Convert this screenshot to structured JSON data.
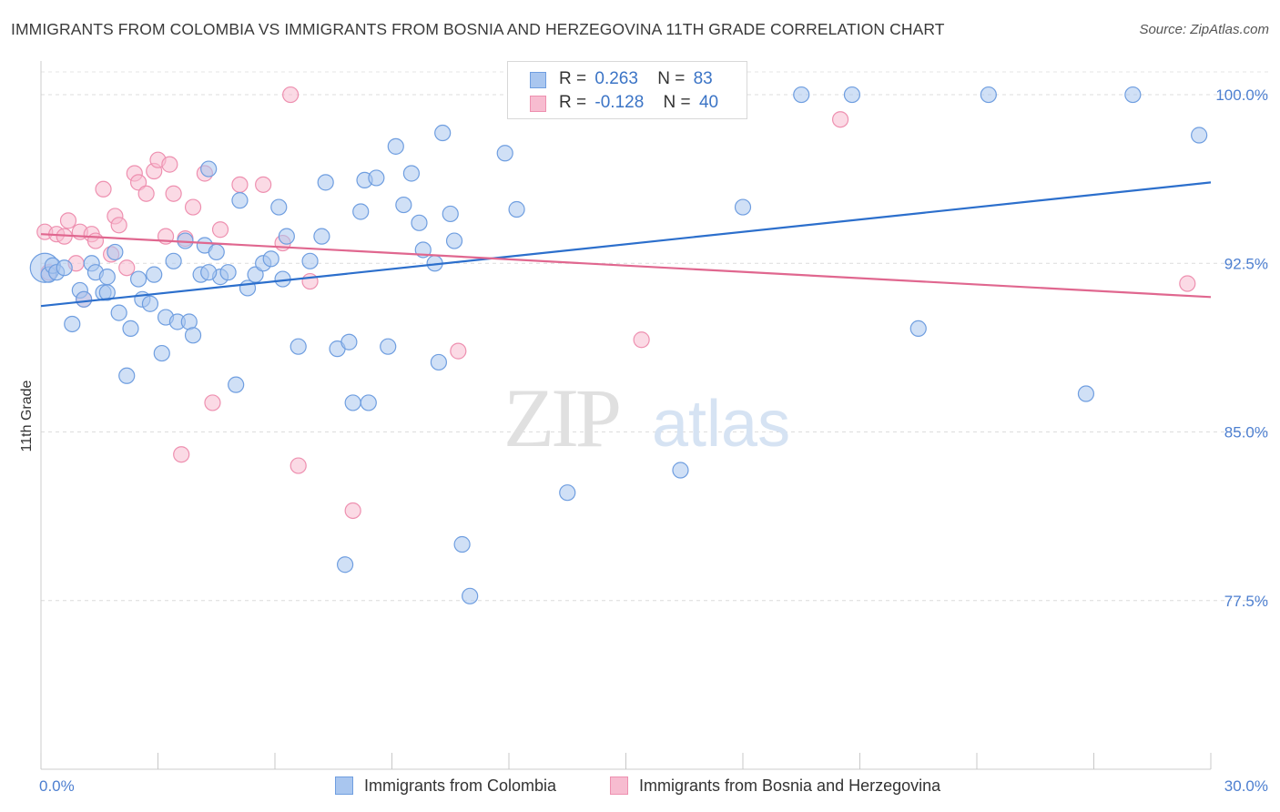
{
  "title": "IMMIGRANTS FROM COLOMBIA VS IMMIGRANTS FROM BOSNIA AND HERZEGOVINA 11TH GRADE CORRELATION CHART",
  "source": "Source: ZipAtlas.com",
  "watermark": {
    "zip": "ZIP",
    "atlas": "atlas"
  },
  "stats": [
    {
      "r_label": "R =",
      "r_value": "0.263",
      "n_label": "N =",
      "n_value": "83"
    },
    {
      "r_label": "R =",
      "r_value": "-0.128",
      "n_label": "N =",
      "n_value": "40"
    }
  ],
  "legend": [
    {
      "label": "Immigrants from Colombia"
    },
    {
      "label": "Immigrants from Bosnia and Herzegovina"
    }
  ],
  "colors": {
    "blue_fill": "#a9c6ef",
    "blue_stroke": "#6f9ee0",
    "blue_line": "#2c6fcc",
    "pink_fill": "#f7bcd0",
    "pink_stroke": "#ee90b0",
    "pink_line": "#e0678f",
    "tick_label": "#4d7fd0"
  },
  "chart_data": {
    "type": "scatter",
    "title": "IMMIGRANTS FROM COLOMBIA VS IMMIGRANTS FROM BOSNIA AND HERZEGOVINA 11TH GRADE CORRELATION CHART",
    "xlabel": "",
    "ylabel": "11th Grade",
    "xlim": [
      0,
      30
    ],
    "ylim": [
      70.0,
      101.5
    ],
    "x_tick_labels": [
      "0.0%",
      "30.0%"
    ],
    "y_ticks": [
      77.5,
      85.0,
      92.5,
      100.0
    ],
    "y_tick_labels": [
      "77.5%",
      "85.0%",
      "92.5%",
      "100.0%"
    ],
    "grid": true,
    "legend_position": "bottom",
    "series": [
      {
        "name": "Immigrants from Colombia",
        "color": "#a9c6ef",
        "trend": {
          "x": [
            0,
            30
          ],
          "y": [
            90.6,
            96.1
          ]
        },
        "points": [
          [
            0.1,
            92.3
          ],
          [
            0.2,
            92.0
          ],
          [
            0.3,
            92.4
          ],
          [
            0.4,
            92.1
          ],
          [
            0.6,
            92.3
          ],
          [
            0.8,
            89.8
          ],
          [
            1.0,
            91.3
          ],
          [
            1.1,
            90.9
          ],
          [
            1.3,
            92.5
          ],
          [
            1.4,
            92.1
          ],
          [
            1.6,
            91.2
          ],
          [
            1.7,
            91.9
          ],
          [
            1.9,
            93.0
          ],
          [
            2.0,
            90.3
          ],
          [
            2.2,
            87.5
          ],
          [
            2.3,
            89.6
          ],
          [
            2.5,
            91.8
          ],
          [
            2.6,
            90.9
          ],
          [
            2.8,
            90.7
          ],
          [
            2.9,
            92.0
          ],
          [
            3.1,
            88.5
          ],
          [
            3.2,
            90.1
          ],
          [
            3.4,
            92.6
          ],
          [
            3.5,
            89.9
          ],
          [
            3.7,
            93.5
          ],
          [
            3.8,
            89.9
          ],
          [
            3.9,
            89.3
          ],
          [
            4.1,
            92.0
          ],
          [
            4.2,
            93.3
          ],
          [
            4.3,
            96.7
          ],
          [
            4.5,
            93.0
          ],
          [
            4.6,
            91.9
          ],
          [
            4.8,
            92.1
          ],
          [
            5.0,
            87.1
          ],
          [
            5.1,
            95.3
          ],
          [
            5.3,
            91.4
          ],
          [
            5.5,
            92.0
          ],
          [
            5.7,
            92.5
          ],
          [
            5.9,
            92.7
          ],
          [
            6.1,
            95.0
          ],
          [
            6.3,
            93.7
          ],
          [
            6.6,
            88.8
          ],
          [
            6.9,
            92.6
          ],
          [
            7.2,
            93.7
          ],
          [
            7.3,
            96.1
          ],
          [
            7.6,
            88.7
          ],
          [
            7.9,
            89.0
          ],
          [
            8.0,
            86.3
          ],
          [
            8.2,
            94.8
          ],
          [
            8.3,
            96.2
          ],
          [
            8.4,
            86.3
          ],
          [
            8.6,
            96.3
          ],
          [
            8.9,
            88.8
          ],
          [
            9.1,
            97.7
          ],
          [
            9.3,
            95.1
          ],
          [
            9.5,
            96.5
          ],
          [
            9.7,
            94.3
          ],
          [
            9.8,
            93.1
          ],
          [
            10.1,
            92.5
          ],
          [
            10.2,
            88.1
          ],
          [
            10.3,
            98.3
          ],
          [
            10.5,
            94.7
          ],
          [
            10.6,
            93.5
          ],
          [
            10.8,
            80.0
          ],
          [
            11.0,
            77.7
          ],
          [
            11.9,
            97.4
          ],
          [
            12.2,
            94.9
          ],
          [
            13.5,
            82.3
          ],
          [
            14.3,
            100.0
          ],
          [
            14.6,
            100.0
          ],
          [
            16.4,
            83.3
          ],
          [
            18.0,
            95.0
          ],
          [
            19.5,
            100.0
          ],
          [
            20.8,
            100.0
          ],
          [
            22.5,
            89.6
          ],
          [
            24.3,
            100.0
          ],
          [
            26.8,
            86.7
          ],
          [
            28.0,
            100.0
          ],
          [
            29.7,
            98.2
          ],
          [
            4.3,
            92.1
          ],
          [
            7.8,
            79.1
          ],
          [
            1.7,
            91.2
          ],
          [
            6.2,
            91.8
          ]
        ]
      },
      {
        "name": "Immigrants from Bosnia and Herzegovina",
        "color": "#f7bcd0",
        "trend": {
          "x": [
            0,
            30
          ],
          "y": [
            93.8,
            91.0
          ]
        },
        "points": [
          [
            0.1,
            93.9
          ],
          [
            0.2,
            92.1
          ],
          [
            0.4,
            93.8
          ],
          [
            0.6,
            93.7
          ],
          [
            0.7,
            94.4
          ],
          [
            0.9,
            92.5
          ],
          [
            1.0,
            93.9
          ],
          [
            1.1,
            90.9
          ],
          [
            1.3,
            93.8
          ],
          [
            1.4,
            93.5
          ],
          [
            1.6,
            95.8
          ],
          [
            1.8,
            92.9
          ],
          [
            1.9,
            94.6
          ],
          [
            2.0,
            94.2
          ],
          [
            2.2,
            92.3
          ],
          [
            2.4,
            96.5
          ],
          [
            2.5,
            96.1
          ],
          [
            2.7,
            95.6
          ],
          [
            2.9,
            96.6
          ],
          [
            3.0,
            97.1
          ],
          [
            3.2,
            93.7
          ],
          [
            3.3,
            96.9
          ],
          [
            3.4,
            95.6
          ],
          [
            3.6,
            84.0
          ],
          [
            3.7,
            93.6
          ],
          [
            3.9,
            95.0
          ],
          [
            4.2,
            96.5
          ],
          [
            4.4,
            86.3
          ],
          [
            4.6,
            94.0
          ],
          [
            5.1,
            96.0
          ],
          [
            5.7,
            96.0
          ],
          [
            6.2,
            93.4
          ],
          [
            6.4,
            100.0
          ],
          [
            6.6,
            83.5
          ],
          [
            6.9,
            91.7
          ],
          [
            8.0,
            81.5
          ],
          [
            10.7,
            88.6
          ],
          [
            15.4,
            89.1
          ],
          [
            20.5,
            98.9
          ],
          [
            29.4,
            91.6
          ]
        ]
      }
    ]
  }
}
